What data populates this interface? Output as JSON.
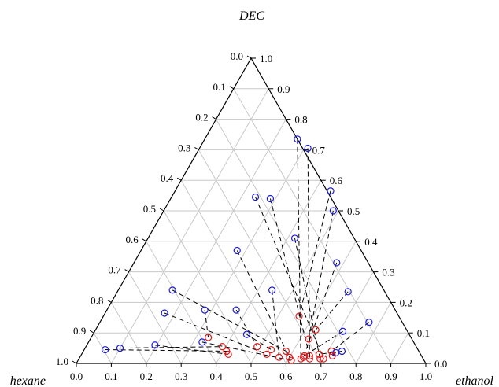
{
  "chart_data": {
    "type": "scatter",
    "subtype": "ternary",
    "title": "",
    "vertex_labels": {
      "top": "DEC",
      "left": "hexane",
      "right": "ethanol"
    },
    "axes": {
      "bottom": {
        "component": "ethanol",
        "range": [
          0,
          1
        ],
        "ticks": [
          "0.0",
          "0.1",
          "0.2",
          "0.3",
          "0.4",
          "0.5",
          "0.6",
          "0.7",
          "0.8",
          "0.9",
          "1.0"
        ]
      },
      "left": {
        "component": "hexane",
        "range": [
          0,
          1
        ],
        "ticks": [
          "0.0",
          "0.1",
          "0.2",
          "0.3",
          "0.4",
          "0.5",
          "0.6",
          "0.7",
          "0.8",
          "0.9",
          "1.0"
        ]
      },
      "right": {
        "component": "DEC",
        "range": [
          0,
          1
        ],
        "ticks": [
          "0.0",
          "0.1",
          "0.2",
          "0.3",
          "0.4",
          "0.5",
          "0.6",
          "0.7",
          "0.8",
          "0.9",
          "1.0"
        ]
      }
    },
    "grid": true,
    "grid_step": 0.1,
    "markers": {
      "blue_color": "#1a1adb",
      "red_color": "#e01a1a",
      "shape": "open-circle"
    },
    "tie_line_style": "dashed",
    "tie_lines": [
      {
        "blue": {
          "DEC": 0.735,
          "ethanol": 0.265
        },
        "red": {
          "DEC": 0.015,
          "ethanol": 0.635
        }
      },
      {
        "blue": {
          "DEC": 0.705,
          "ethanol": 0.31
        },
        "red": {
          "DEC": 0.015,
          "ethanol": 0.66
        }
      },
      {
        "blue": {
          "DEC": 0.565,
          "ethanol": 0.445
        },
        "red": {
          "DEC": 0.155,
          "ethanol": 0.56
        }
      },
      {
        "blue": {
          "DEC": 0.5,
          "ethanol": 0.485
        },
        "red": {
          "DEC": 0.08,
          "ethanol": 0.625
        }
      },
      {
        "blue": {
          "DEC": 0.54,
          "ethanol": 0.285
        },
        "red": {
          "DEC": 0.025,
          "ethanol": 0.655
        }
      },
      {
        "blue": {
          "DEC": 0.545,
          "ethanol": 0.24
        },
        "red": {
          "DEC": 0.015,
          "ethanol": 0.7
        }
      },
      {
        "blue": {
          "DEC": 0.41,
          "ethanol": 0.42
        },
        "red": {
          "DEC": 0.015,
          "ethanol": 0.69
        }
      },
      {
        "blue": {
          "DEC": 0.37,
          "ethanol": 0.275
        },
        "red": {
          "DEC": 0.02,
          "ethanol": 0.6
        }
      },
      {
        "blue": {
          "DEC": 0.33,
          "ethanol": 0.58
        },
        "red": {
          "DEC": 0.02,
          "ethanol": 0.64
        }
      },
      {
        "blue": {
          "DEC": 0.24,
          "ethanol": 0.44
        },
        "red": {
          "DEC": 0.02,
          "ethanol": 0.57
        }
      },
      {
        "blue": {
          "DEC": 0.235,
          "ethanol": 0.66
        },
        "red": {
          "DEC": 0.11,
          "ethanol": 0.63
        }
      },
      {
        "blue": {
          "DEC": 0.24,
          "ethanol": 0.155
        },
        "red": {
          "DEC": 0.04,
          "ethanol": 0.58
        }
      },
      {
        "blue": {
          "DEC": 0.175,
          "ethanol": 0.37
        },
        "red": {
          "DEC": 0.055,
          "ethanol": 0.49
        }
      },
      {
        "blue": {
          "DEC": 0.175,
          "ethanol": 0.28
        },
        "red": {
          "DEC": 0.085,
          "ethanol": 0.335
        }
      },
      {
        "blue": {
          "DEC": 0.165,
          "ethanol": 0.17
        },
        "red": {
          "DEC": 0.03,
          "ethanol": 0.53
        }
      },
      {
        "blue": {
          "DEC": 0.135,
          "ethanol": 0.77
        },
        "red": {
          "DEC": 0.04,
          "ethanol": 0.71
        }
      },
      {
        "blue": {
          "DEC": 0.105,
          "ethanol": 0.71
        },
        "red": {
          "DEC": 0.025,
          "ethanol": 0.64
        }
      },
      {
        "blue": {
          "DEC": 0.095,
          "ethanol": 0.44
        },
        "red": {
          "DEC": 0.045,
          "ethanol": 0.535
        }
      },
      {
        "blue": {
          "DEC": 0.07,
          "ethanol": 0.325
        },
        "red": {
          "DEC": 0.01,
          "ethanol": 0.61
        }
      },
      {
        "blue": {
          "DEC": 0.06,
          "ethanol": 0.195
        },
        "red": {
          "DEC": 0.03,
          "ethanol": 0.42
        }
      },
      {
        "blue": {
          "DEC": 0.05,
          "ethanol": 0.1
        },
        "red": {
          "DEC": 0.055,
          "ethanol": 0.39
        }
      },
      {
        "blue": {
          "DEC": 0.045,
          "ethanol": 0.06
        },
        "red": {
          "DEC": 0.04,
          "ethanol": 0.41
        }
      },
      {
        "blue": {
          "DEC": 0.035,
          "ethanol": 0.725
        },
        "red": {
          "DEC": 0.025,
          "ethanol": 0.72
        }
      },
      {
        "blue": {
          "DEC": 0.04,
          "ethanol": 0.74
        },
        "red": {
          "DEC": 0.03,
          "ethanol": 0.68
        }
      }
    ]
  }
}
